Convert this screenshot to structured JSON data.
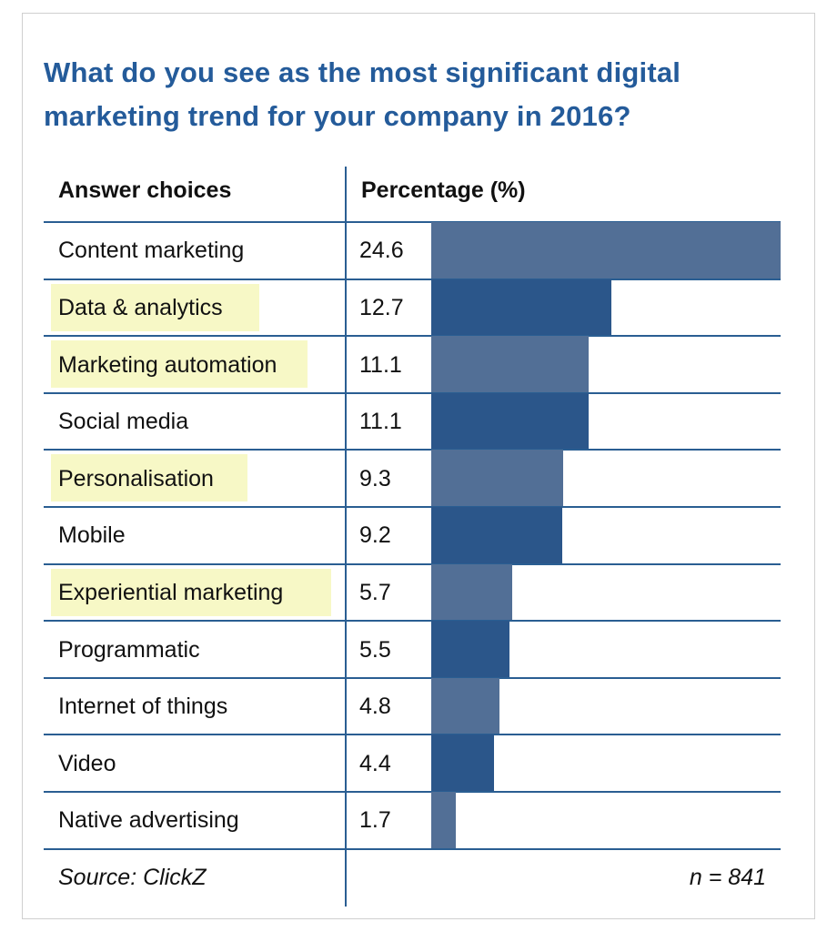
{
  "chart_data": {
    "type": "bar",
    "title": "What do you see as the most significant digital marketing trend for your company in 2016?",
    "column_headers": {
      "answers": "Answer choices",
      "percentage": "Percentage (%)"
    },
    "categories": [
      "Content marketing",
      "Data & analytics",
      "Marketing automation",
      "Social media",
      "Personalisation",
      "Mobile",
      "Experiential marketing",
      "Programmatic",
      "Internet of things",
      "Video",
      "Native advertising"
    ],
    "values": [
      24.6,
      12.7,
      11.1,
      11.1,
      9.3,
      9.2,
      5.7,
      5.5,
      4.8,
      4.4,
      1.7
    ],
    "value_labels": [
      "24.6",
      "12.7",
      "11.1",
      "11.1",
      "9.3",
      "9.2",
      "5.7",
      "5.5",
      "4.8",
      "4.4",
      "1.7"
    ],
    "highlighted": [
      false,
      true,
      true,
      false,
      true,
      false,
      true,
      false,
      false,
      false,
      false
    ],
    "orientation": "horizontal",
    "xlim": [
      0,
      24.6
    ],
    "bar_colors": [
      "#526f96",
      "#2b568a"
    ],
    "highlight_color": "#f7f8c6",
    "source": "Source: ClickZ",
    "sample": "n = 841"
  }
}
